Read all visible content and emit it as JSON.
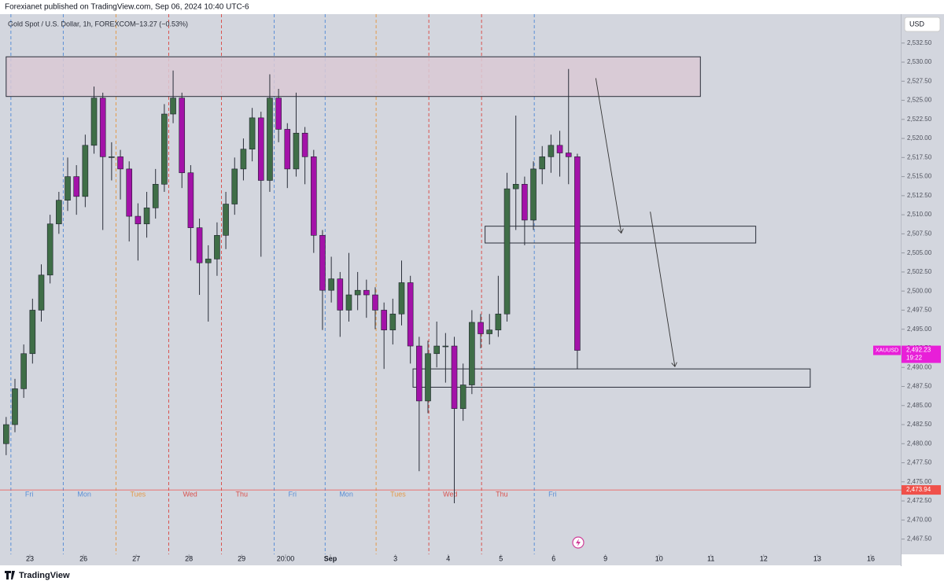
{
  "header": {
    "published": "Forexianet published on TradingView.com, Sep 06, 2024 10:40 UTC-6"
  },
  "footer": {
    "brand": "TradingView"
  },
  "chart_data": {
    "type": "candlestick",
    "symbol_title": "Gold Spot / U.S. Dollar, 1h, FOREXCOM",
    "change_text": "−13.27 (−0.53%)",
    "currency": "USD",
    "up_color": "#3f6e47",
    "down_color": "#a312a8",
    "background": "#d3d6de",
    "xlim": [
      -0.7,
      101.8
    ],
    "ylim": [
      2465.5,
      2536.7
    ],
    "xticks": [
      {
        "value": 2.7,
        "label": "23"
      },
      {
        "value": 8.8,
        "label": "26"
      },
      {
        "value": 14.8,
        "label": "27"
      },
      {
        "value": 20.8,
        "label": "28"
      },
      {
        "value": 26.8,
        "label": "29"
      },
      {
        "value": 31.8,
        "label": "20:00"
      },
      {
        "value": 36.9,
        "label": "Sep"
      },
      {
        "value": 44.3,
        "label": "3"
      },
      {
        "value": 50.3,
        "label": "4"
      },
      {
        "value": 56.3,
        "label": "5"
      },
      {
        "value": 62.3,
        "label": "6"
      },
      {
        "value": 68.2,
        "label": "9"
      },
      {
        "value": 74.3,
        "label": "10"
      },
      {
        "value": 80.2,
        "label": "11"
      },
      {
        "value": 86.2,
        "label": "12"
      },
      {
        "value": 92.3,
        "label": "13"
      },
      {
        "value": 98.4,
        "label": "16"
      }
    ],
    "yticks": [
      {
        "value": 2467.5,
        "label": "2,467.50"
      },
      {
        "value": 2470,
        "label": "2,470.00"
      },
      {
        "value": 2472.5,
        "label": "2,472.50"
      },
      {
        "value": 2475,
        "label": "2,475.00"
      },
      {
        "value": 2477.5,
        "label": "2,477.50"
      },
      {
        "value": 2480,
        "label": "2,480.00"
      },
      {
        "value": 2482.5,
        "label": "2,482.50"
      },
      {
        "value": 2485,
        "label": "2,485.00"
      },
      {
        "value": 2487.5,
        "label": "2,487.50"
      },
      {
        "value": 2490,
        "label": "2,490.00"
      },
      {
        "value": 2492.5,
        "label": "2,492.50"
      },
      {
        "value": 2495,
        "label": "2,495.00"
      },
      {
        "value": 2497.5,
        "label": "2,497.50"
      },
      {
        "value": 2500,
        "label": "2,500.00"
      },
      {
        "value": 2502.5,
        "label": "2,502.50"
      },
      {
        "value": 2505,
        "label": "2,505.00"
      },
      {
        "value": 2507.5,
        "label": "2,507.50"
      },
      {
        "value": 2510,
        "label": "2,510.00"
      },
      {
        "value": 2512.5,
        "label": "2,512.50"
      },
      {
        "value": 2515,
        "label": "2,515.00"
      },
      {
        "value": 2517.5,
        "label": "2,517.50"
      },
      {
        "value": 2520,
        "label": "2,520.00"
      },
      {
        "value": 2522.5,
        "label": "2,522.50"
      },
      {
        "value": 2525,
        "label": "2,525.00"
      },
      {
        "value": 2527.5,
        "label": "2,527.50"
      },
      {
        "value": 2530,
        "label": "2,530.00"
      },
      {
        "value": 2532.5,
        "label": "2,532.50"
      }
    ],
    "sessions": [
      {
        "x": 0.54,
        "label": "Fri",
        "color": "#5b8fd6"
      },
      {
        "x": 6.5,
        "label": "Mon",
        "color": "#5b8fd6"
      },
      {
        "x": 12.5,
        "label": "Tues",
        "color": "#e39a4a"
      },
      {
        "x": 18.5,
        "label": "Wed",
        "color": "#d9534f"
      },
      {
        "x": 24.5,
        "label": "Thu",
        "color": "#d9534f"
      },
      {
        "x": 30.5,
        "label": "Fri",
        "color": "#5b8fd6"
      },
      {
        "x": 36.3,
        "label": "Mon",
        "color": "#5b8fd6"
      },
      {
        "x": 42.1,
        "label": "Tues",
        "color": "#e39a4a"
      },
      {
        "x": 48.1,
        "label": "Wed",
        "color": "#d9534f"
      },
      {
        "x": 54.1,
        "label": "Thu",
        "color": "#d9534f"
      },
      {
        "x": 60.1,
        "label": "Fri",
        "color": "#5b8fd6"
      }
    ],
    "open": [
      2480.0,
      2482.5,
      2487.2,
      2491.8,
      2497.5,
      2502.1,
      2508.8,
      2511.9,
      2515.0,
      2512.4,
      2519.1,
      2525.3,
      2517.6,
      2517.6,
      2516.0,
      2509.8,
      2508.8,
      2510.9,
      2514.0,
      2523.2,
      2525.3,
      2515.5,
      2508.3,
      2503.7,
      2504.2,
      2507.3,
      2511.4,
      2516.0,
      2518.6,
      2522.7,
      2514.5,
      2525.3,
      2521.2,
      2516.0,
      2520.7,
      2517.6,
      2507.3,
      2500.1,
      2501.6,
      2497.5,
      2499.5,
      2500.1,
      2499.5,
      2497.5,
      2494.9,
      2497.0,
      2501.1,
      2492.8,
      2485.6,
      2491.8,
      2492.8,
      2492.8,
      2484.6,
      2487.7,
      2495.9,
      2494.4,
      2494.9,
      2497.0,
      2513.4,
      2514.0,
      2509.3,
      2516.0,
      2517.6,
      2519.1,
      2518.1,
      2517.6
    ],
    "high": [
      2483.5,
      2488.5,
      2493.0,
      2499.0,
      2503.5,
      2510.0,
      2513.0,
      2517.5,
      2516.5,
      2520.5,
      2526.8,
      2526.0,
      2519.5,
      2518.5,
      2517.0,
      2511.5,
      2513.0,
      2516.0,
      2524.5,
      2528.9,
      2526.0,
      2516.5,
      2509.5,
      2506.0,
      2509.0,
      2513.0,
      2517.5,
      2520.0,
      2524.0,
      2523.5,
      2528.4,
      2526.5,
      2522.0,
      2526.0,
      2521.5,
      2518.5,
      2508.0,
      2504.5,
      2502.5,
      2505.0,
      2502.5,
      2501.5,
      2500.5,
      2498.5,
      2499.0,
      2504.0,
      2502.0,
      2494.0,
      2493.5,
      2496.0,
      2494.5,
      2494.0,
      2490.5,
      2497.5,
      2497.0,
      2497.0,
      2502.0,
      2515.5,
      2523.0,
      2515.0,
      2517.0,
      2519.0,
      2520.5,
      2521.0,
      2529.1,
      2518.0
    ],
    "low": [
      2478.5,
      2481.5,
      2486.0,
      2490.5,
      2496.0,
      2501.0,
      2507.5,
      2510.5,
      2510.0,
      2511.0,
      2518.0,
      2508.0,
      2514.5,
      2512.0,
      2506.5,
      2504.0,
      2507.0,
      2509.5,
      2513.0,
      2522.0,
      2513.5,
      2504.0,
      2499.5,
      2496.0,
      2502.0,
      2505.5,
      2510.0,
      2514.5,
      2517.0,
      2504.5,
      2513.0,
      2519.5,
      2513.5,
      2515.0,
      2514.0,
      2505.0,
      2494.9,
      2498.5,
      2494.0,
      2496.0,
      2497.5,
      2496.5,
      2495.0,
      2489.8,
      2493.0,
      2495.5,
      2490.5,
      2476.4,
      2484.0,
      2490.0,
      2488.0,
      2472.2,
      2483.0,
      2486.5,
      2492.5,
      2493.0,
      2494.0,
      2496.0,
      2508.0,
      2506.0,
      2508.0,
      2514.0,
      2515.5,
      2515.0,
      2514.0,
      2489.8
    ],
    "close": [
      2482.5,
      2487.2,
      2491.8,
      2497.5,
      2502.1,
      2508.8,
      2511.9,
      2515.0,
      2512.4,
      2519.1,
      2525.3,
      2517.6,
      2517.6,
      2516.0,
      2509.8,
      2508.8,
      2510.9,
      2514.0,
      2523.2,
      2525.3,
      2515.5,
      2508.3,
      2503.7,
      2504.2,
      2507.3,
      2511.4,
      2516.0,
      2518.6,
      2522.7,
      2514.5,
      2525.3,
      2521.2,
      2516.0,
      2520.7,
      2517.6,
      2507.3,
      2500.1,
      2501.6,
      2497.5,
      2499.5,
      2500.1,
      2499.5,
      2497.5,
      2494.9,
      2497.0,
      2501.1,
      2492.8,
      2485.6,
      2491.8,
      2492.8,
      2492.8,
      2484.6,
      2487.7,
      2495.9,
      2494.4,
      2494.9,
      2497.0,
      2513.4,
      2514.0,
      2509.3,
      2516.0,
      2517.6,
      2519.1,
      2518.1,
      2517.6,
      2492.23
    ],
    "last_price": {
      "value": 2492.23,
      "label": "2,492.23",
      "symbol": "XAUUSD",
      "countdown": "19:22",
      "color": "#e81fd8"
    },
    "reference_line": {
      "value": 2473.94,
      "label": "2,473.94",
      "color": "#f0504a"
    },
    "zones": [
      {
        "x0": 0,
        "x1": 79,
        "top": 2530.7,
        "bottom": 2525.5,
        "fill": "#d9c9d5"
      },
      {
        "x0": 54.5,
        "x1": 85.3,
        "top": 2508.5,
        "bottom": 2506.3,
        "fill": "none"
      },
      {
        "x0": 46.3,
        "x1": 91.5,
        "top": 2489.8,
        "bottom": 2487.4,
        "fill": "none"
      }
    ],
    "arrows": [
      {
        "x0": 67.1,
        "y0": 2527.9,
        "x1": 70.0,
        "y1": 2507.6
      },
      {
        "x0": 73.3,
        "y0": 2510.4,
        "x1": 76.1,
        "y1": 2490.1
      }
    ]
  }
}
